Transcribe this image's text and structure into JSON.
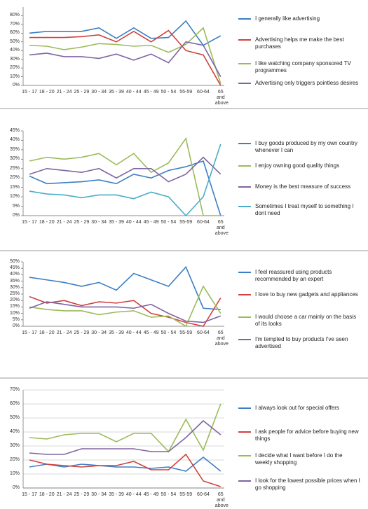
{
  "chart_data": [
    {
      "type": "line",
      "categories": [
        "15 - 17",
        "18 - 20",
        "21 - 24",
        "25 - 29",
        "30 - 34",
        "35 - 39",
        "40 - 44",
        "45 - 49",
        "50 - 54",
        "55-59",
        "60-64",
        "65 and above"
      ],
      "ylim": [
        0,
        90
      ],
      "yticks": [
        {
          "value": 0,
          "label": "0%"
        },
        {
          "value": 10,
          "label": "10%"
        },
        {
          "value": 20,
          "label": "20%"
        },
        {
          "value": 30,
          "label": "30%"
        },
        {
          "value": 40,
          "label": "40%"
        },
        {
          "value": 50,
          "label": "50%"
        },
        {
          "value": 60,
          "label": "60%"
        },
        {
          "value": 70,
          "label": "70%"
        },
        {
          "value": 80,
          "label": "80%"
        }
      ],
      "grid": false,
      "series": [
        {
          "name": "I generally like advertising",
          "color": "#3b7fc4",
          "values": [
            60,
            62,
            62,
            62,
            66,
            54,
            66,
            54,
            55,
            74,
            46,
            57
          ]
        },
        {
          "name": "Advertising helps me make the best purchases",
          "color": "#d0413c",
          "values": [
            55,
            55,
            55,
            56,
            58,
            50,
            62,
            50,
            63,
            40,
            35,
            0
          ]
        },
        {
          "name": "I like watching company sponsored TV programmes",
          "color": "#9bbb59",
          "values": [
            46,
            45,
            41,
            44,
            48,
            47,
            45,
            46,
            38,
            47,
            66,
            2
          ]
        },
        {
          "name": "Advertising only triggers pointless desires",
          "color": "#8064a2",
          "values": [
            35,
            37,
            33,
            33,
            31,
            36,
            29,
            36,
            26,
            50,
            46,
            10
          ]
        }
      ]
    },
    {
      "type": "line",
      "categories": [
        "15 - 17",
        "18 - 20",
        "21 - 24",
        "25 - 29",
        "30 - 34",
        "35 - 39",
        "40 - 44",
        "45 - 49",
        "50 - 54",
        "55-59",
        "60-64",
        "65 and above"
      ],
      "ylim": [
        0,
        45
      ],
      "yticks": [
        {
          "value": 0,
          "label": "0%"
        },
        {
          "value": 5,
          "label": "5%"
        },
        {
          "value": 10,
          "label": "10%"
        },
        {
          "value": 15,
          "label": "15%"
        },
        {
          "value": 20,
          "label": "20%"
        },
        {
          "value": 25,
          "label": "25%"
        },
        {
          "value": 30,
          "label": "30%"
        },
        {
          "value": 35,
          "label": "35%"
        },
        {
          "value": 40,
          "label": "40%"
        },
        {
          "value": 45,
          "label": "45%"
        }
      ],
      "grid": false,
      "series": [
        {
          "name": "I buy goods produced by my own country whenever I can",
          "color": "#3b7fc4",
          "values": [
            21,
            17,
            17.5,
            18,
            19,
            17,
            22,
            20,
            24,
            26,
            29,
            0
          ]
        },
        {
          "name": "I enjoy owning good quality things",
          "color": "#9bbb59",
          "values": [
            29,
            31,
            30,
            31,
            33,
            27,
            33,
            23,
            28,
            41,
            0,
            0
          ]
        },
        {
          "name": "Money is the best measure of success",
          "color": "#8064a2",
          "values": [
            22,
            25,
            24,
            23,
            25,
            20,
            25,
            25,
            18,
            22,
            31,
            22
          ]
        },
        {
          "name": "Sometimes I treat myself to something I dont need",
          "color": "#4bacc6",
          "values": [
            13,
            11.5,
            11,
            9.5,
            11,
            11,
            9,
            12.5,
            10,
            0,
            10,
            38
          ]
        }
      ]
    },
    {
      "type": "line",
      "categories": [
        "15 - 17",
        "18 - 20",
        "21 - 24",
        "25 - 29",
        "30 - 34",
        "35 - 39",
        "40 - 44",
        "45 - 49",
        "50 - 54",
        "55-59",
        "60-64",
        "65 and above"
      ],
      "ylim": [
        0,
        50
      ],
      "yticks": [
        {
          "value": 0,
          "label": "0%"
        },
        {
          "value": 5,
          "label": "5%"
        },
        {
          "value": 10,
          "label": "10%"
        },
        {
          "value": 15,
          "label": "15%"
        },
        {
          "value": 20,
          "label": "20%"
        },
        {
          "value": 25,
          "label": "25%"
        },
        {
          "value": 30,
          "label": "30%"
        },
        {
          "value": 35,
          "label": "35%"
        },
        {
          "value": 40,
          "label": "40%"
        },
        {
          "value": 45,
          "label": "45%"
        },
        {
          "value": 50,
          "label": "50%"
        }
      ],
      "grid": false,
      "series": [
        {
          "name": "I feel reassured using products recommended by an expert",
          "color": "#3b7fc4",
          "values": [
            38,
            36,
            34,
            31,
            34,
            28,
            41,
            36,
            31,
            46,
            14,
            13
          ]
        },
        {
          "name": "I love to buy new gadgets and appliances",
          "color": "#d0413c",
          "values": [
            23,
            18,
            20,
            16,
            19,
            18,
            20,
            10,
            7,
            3,
            0,
            22
          ]
        },
        {
          "name": "I would choose a car mainly on the basis of its looks",
          "color": "#9bbb59",
          "values": [
            15,
            13,
            12,
            12,
            9,
            11,
            12,
            7,
            8,
            0,
            31,
            10
          ]
        },
        {
          "name": "I'm tempted to buy products I've seen advertised",
          "color": "#8064a2",
          "values": [
            14,
            19,
            17,
            15,
            15,
            15,
            14,
            17,
            10,
            4,
            3,
            8
          ]
        }
      ]
    },
    {
      "type": "line",
      "categories": [
        "15 - 17",
        "18 - 20",
        "21 - 24",
        "25 - 29",
        "30 - 34",
        "35 - 39",
        "40 - 44",
        "45 - 49",
        "50 - 54",
        "55-59",
        "60-64",
        "65 and above"
      ],
      "ylim": [
        0,
        70
      ],
      "yticks": [
        {
          "value": 0,
          "label": "0%"
        },
        {
          "value": 10,
          "label": "10%"
        },
        {
          "value": 20,
          "label": "20%"
        },
        {
          "value": 30,
          "label": "30%"
        },
        {
          "value": 40,
          "label": "40%"
        },
        {
          "value": 50,
          "label": "50%"
        },
        {
          "value": 60,
          "label": "60%"
        },
        {
          "value": 70,
          "label": "70%"
        }
      ],
      "grid": true,
      "series": [
        {
          "name": "I always look out for special offers",
          "color": "#3b7fc4",
          "values": [
            15,
            17,
            15,
            17,
            16,
            15,
            15,
            14,
            15,
            12,
            22,
            12
          ]
        },
        {
          "name": "I ask people for advice before buying new things",
          "color": "#d0413c",
          "values": [
            20,
            17,
            16,
            15,
            16,
            16,
            19,
            13,
            13,
            24,
            5,
            1
          ]
        },
        {
          "name": "I decide what I want before I do the weekly shopping",
          "color": "#9bbb59",
          "values": [
            36,
            35,
            38,
            39,
            39,
            33,
            39,
            39,
            26,
            49,
            27,
            60
          ]
        },
        {
          "name": "I look for the lowest possible prices when I go shopping",
          "color": "#8064a2",
          "values": [
            25,
            24,
            24,
            28,
            28,
            28,
            28,
            26,
            26,
            36,
            48,
            38
          ]
        }
      ]
    }
  ]
}
